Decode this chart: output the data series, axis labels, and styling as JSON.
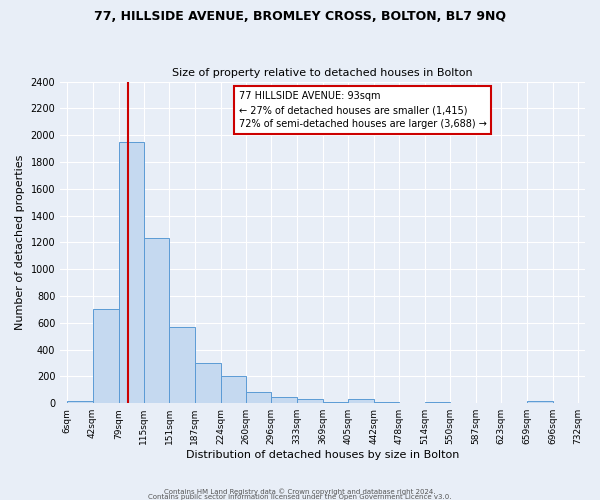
{
  "title1": "77, HILLSIDE AVENUE, BROMLEY CROSS, BOLTON, BL7 9NQ",
  "title2": "Size of property relative to detached houses in Bolton",
  "xlabel": "Distribution of detached houses by size in Bolton",
  "ylabel": "Number of detached properties",
  "bin_edges": [
    6,
    42,
    79,
    115,
    151,
    187,
    224,
    260,
    296,
    333,
    369,
    405,
    442,
    478,
    514,
    550,
    587,
    623,
    659,
    696,
    732
  ],
  "bin_heights": [
    15,
    700,
    1950,
    1230,
    570,
    300,
    200,
    80,
    45,
    35,
    10,
    30,
    10,
    5,
    10,
    5,
    5,
    5,
    15,
    5
  ],
  "bar_color": "#c5d9f0",
  "bar_edge_color": "#5b9bd5",
  "vline_x": 93,
  "vline_color": "#cc0000",
  "annotation_line0": "77 HILLSIDE AVENUE: 93sqm",
  "annotation_line1": "← 27% of detached houses are smaller (1,415)",
  "annotation_line2": "72% of semi-detached houses are larger (3,688) →",
  "annotation_box_color": "#ffffff",
  "annotation_box_edge": "#cc0000",
  "ylim": [
    0,
    2400
  ],
  "yticks": [
    0,
    200,
    400,
    600,
    800,
    1000,
    1200,
    1400,
    1600,
    1800,
    2000,
    2200,
    2400
  ],
  "footer1": "Contains HM Land Registry data © Crown copyright and database right 2024.",
  "footer2": "Contains public sector information licensed under the Open Government Licence v3.0.",
  "bg_color": "#e8eef7",
  "plot_bg_color": "#e8eef7"
}
